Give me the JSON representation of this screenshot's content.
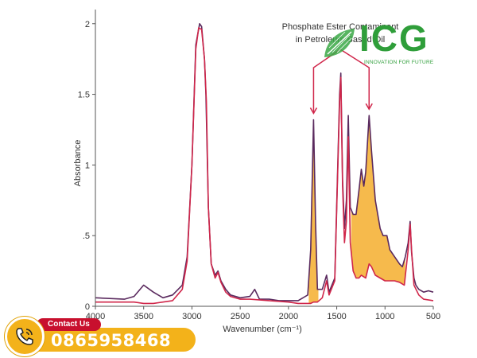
{
  "chart_data": {
    "type": "line",
    "title": "Phosphate Ester Contaminant in Petroleum Based Oil",
    "xlabel": "Wavenumber (cm⁻¹)",
    "ylabel": "Absorbance",
    "xlim": [
      4000,
      500
    ],
    "ylim": [
      0,
      2.1
    ],
    "x_ticks": [
      4000,
      3500,
      3000,
      2500,
      2000,
      1500,
      1000,
      500
    ],
    "y_ticks": [
      {
        "value": 0,
        "label": "0"
      },
      {
        "value": 0.5,
        "label": ".5"
      },
      {
        "value": 1,
        "label": "1"
      },
      {
        "value": 1.5,
        "label": "1.5"
      },
      {
        "value": 2,
        "label": "2"
      }
    ],
    "grid": false,
    "highlight_fill": "#f5b642",
    "annotation_arrows_at": [
      1740,
      1165
    ],
    "series": [
      {
        "color": "#5a2a5e",
        "points": [
          [
            4000,
            0.06
          ],
          [
            3700,
            0.05
          ],
          [
            3600,
            0.07
          ],
          [
            3500,
            0.15
          ],
          [
            3400,
            0.1
          ],
          [
            3300,
            0.06
          ],
          [
            3200,
            0.08
          ],
          [
            3100,
            0.15
          ],
          [
            3050,
            0.35
          ],
          [
            3000,
            1.0
          ],
          [
            2960,
            1.85
          ],
          [
            2920,
            2.0
          ],
          [
            2900,
            1.98
          ],
          [
            2870,
            1.75
          ],
          [
            2855,
            1.5
          ],
          [
            2830,
            0.7
          ],
          [
            2800,
            0.3
          ],
          [
            2760,
            0.22
          ],
          [
            2730,
            0.25
          ],
          [
            2700,
            0.18
          ],
          [
            2650,
            0.12
          ],
          [
            2600,
            0.08
          ],
          [
            2500,
            0.06
          ],
          [
            2400,
            0.07
          ],
          [
            2350,
            0.12
          ],
          [
            2300,
            0.05
          ],
          [
            2200,
            0.05
          ],
          [
            2100,
            0.04
          ],
          [
            2000,
            0.04
          ],
          [
            1900,
            0.04
          ],
          [
            1800,
            0.08
          ],
          [
            1770,
            0.4
          ],
          [
            1740,
            1.32
          ],
          [
            1720,
            0.6
          ],
          [
            1700,
            0.12
          ],
          [
            1650,
            0.12
          ],
          [
            1605,
            0.22
          ],
          [
            1580,
            0.1
          ],
          [
            1520,
            0.2
          ],
          [
            1470,
            1.5
          ],
          [
            1458,
            1.65
          ],
          [
            1440,
            0.9
          ],
          [
            1420,
            0.55
          ],
          [
            1400,
            0.75
          ],
          [
            1380,
            1.35
          ],
          [
            1360,
            0.7
          ],
          [
            1330,
            0.65
          ],
          [
            1300,
            0.65
          ],
          [
            1270,
            0.82
          ],
          [
            1245,
            0.97
          ],
          [
            1220,
            0.85
          ],
          [
            1200,
            0.95
          ],
          [
            1165,
            1.35
          ],
          [
            1140,
            1.1
          ],
          [
            1100,
            0.75
          ],
          [
            1050,
            0.55
          ],
          [
            1020,
            0.5
          ],
          [
            980,
            0.5
          ],
          [
            950,
            0.4
          ],
          [
            900,
            0.35
          ],
          [
            850,
            0.3
          ],
          [
            820,
            0.28
          ],
          [
            790,
            0.35
          ],
          [
            760,
            0.45
          ],
          [
            740,
            0.6
          ],
          [
            725,
            0.38
          ],
          [
            700,
            0.2
          ],
          [
            680,
            0.15
          ],
          [
            650,
            0.12
          ],
          [
            600,
            0.1
          ],
          [
            550,
            0.11
          ],
          [
            500,
            0.1
          ]
        ]
      },
      {
        "color": "#d0264a",
        "points": [
          [
            4000,
            0.03
          ],
          [
            3800,
            0.03
          ],
          [
            3600,
            0.03
          ],
          [
            3500,
            0.02
          ],
          [
            3400,
            0.02
          ],
          [
            3200,
            0.04
          ],
          [
            3100,
            0.12
          ],
          [
            3050,
            0.32
          ],
          [
            3000,
            1.0
          ],
          [
            2960,
            1.82
          ],
          [
            2930,
            1.97
          ],
          [
            2900,
            1.96
          ],
          [
            2870,
            1.75
          ],
          [
            2850,
            1.45
          ],
          [
            2830,
            0.7
          ],
          [
            2800,
            0.3
          ],
          [
            2760,
            0.2
          ],
          [
            2730,
            0.24
          ],
          [
            2700,
            0.17
          ],
          [
            2650,
            0.1
          ],
          [
            2600,
            0.07
          ],
          [
            2500,
            0.05
          ],
          [
            2400,
            0.05
          ],
          [
            2200,
            0.04
          ],
          [
            2000,
            0.03
          ],
          [
            1900,
            0.02
          ],
          [
            1800,
            0.02
          ],
          [
            1770,
            0.02
          ],
          [
            1740,
            0.03
          ],
          [
            1700,
            0.03
          ],
          [
            1650,
            0.06
          ],
          [
            1605,
            0.18
          ],
          [
            1580,
            0.08
          ],
          [
            1520,
            0.18
          ],
          [
            1470,
            1.45
          ],
          [
            1458,
            1.62
          ],
          [
            1440,
            0.85
          ],
          [
            1420,
            0.45
          ],
          [
            1400,
            0.6
          ],
          [
            1380,
            1.2
          ],
          [
            1360,
            0.45
          ],
          [
            1330,
            0.25
          ],
          [
            1300,
            0.2
          ],
          [
            1270,
            0.2
          ],
          [
            1245,
            0.22
          ],
          [
            1200,
            0.2
          ],
          [
            1165,
            0.3
          ],
          [
            1140,
            0.28
          ],
          [
            1100,
            0.22
          ],
          [
            1050,
            0.2
          ],
          [
            1000,
            0.18
          ],
          [
            950,
            0.18
          ],
          [
            900,
            0.18
          ],
          [
            850,
            0.17
          ],
          [
            800,
            0.15
          ],
          [
            760,
            0.4
          ],
          [
            740,
            0.58
          ],
          [
            725,
            0.4
          ],
          [
            700,
            0.15
          ],
          [
            650,
            0.08
          ],
          [
            600,
            0.05
          ],
          [
            500,
            0.04
          ]
        ]
      }
    ]
  },
  "annotation": {
    "line1": "Phosphate Ester Contaminant",
    "line2": "in Petroleum Based Oil"
  },
  "logo": {
    "text": "ICG",
    "tagline": "INNOVATION FOR FUTURE",
    "color": "#2f9e3a"
  },
  "contact": {
    "label": "Contact Us",
    "phone": "0865958468",
    "icon": "phone-icon"
  }
}
